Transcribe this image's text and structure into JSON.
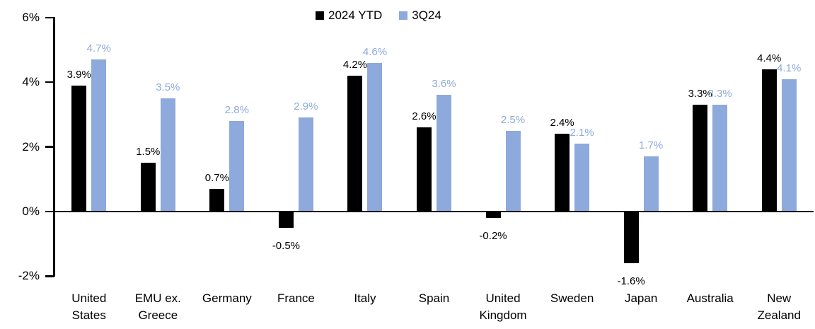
{
  "chart_data": {
    "type": "bar",
    "title": "",
    "xlabel": "",
    "ylabel": "",
    "categories": [
      "United States",
      "EMU ex. Greece",
      "Germany",
      "France",
      "Italy",
      "Spain",
      "United Kingdom",
      "Sweden",
      "Japan",
      "Australia",
      "New Zealand"
    ],
    "series": [
      {
        "name": "2024 YTD",
        "color": "#000000",
        "values": [
          3.9,
          1.5,
          0.7,
          -0.5,
          4.2,
          2.6,
          -0.2,
          2.4,
          -1.6,
          3.3,
          4.4
        ],
        "labels": [
          "3.9%",
          "1.5%",
          "0.7%",
          "-0.5%",
          "4.2%",
          "2.6%",
          "-0.2%",
          "2.4%",
          "-1.6%",
          "3.3%",
          "4.4%"
        ]
      },
      {
        "name": "3Q24",
        "color": "#8EA9DB",
        "values": [
          4.7,
          3.5,
          2.8,
          2.9,
          4.6,
          3.6,
          2.5,
          2.1,
          1.7,
          3.3,
          4.1
        ],
        "labels": [
          "4.7%",
          "3.5%",
          "2.8%",
          "2.9%",
          "4.6%",
          "3.6%",
          "2.5%",
          "2.1%",
          "1.7%",
          "3.3%",
          "4.1%"
        ]
      }
    ],
    "ylim": [
      -2,
      6
    ],
    "yticks": [
      {
        "value": 6,
        "label": "6%"
      },
      {
        "value": 4,
        "label": "4%"
      },
      {
        "value": 2,
        "label": "2%"
      },
      {
        "value": 0,
        "label": "0%"
      },
      {
        "value": -2,
        "label": "-2%"
      }
    ],
    "legend_position": "top-center",
    "grid": "off",
    "background": "#FFFFFF"
  }
}
